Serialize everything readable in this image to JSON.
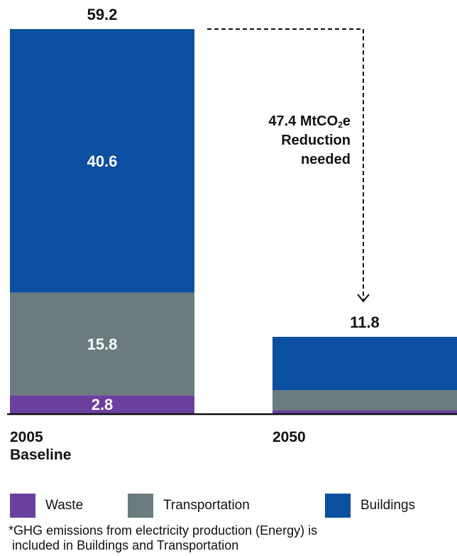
{
  "chart_data": {
    "type": "bar",
    "stacked": true,
    "categories": [
      "2005 Baseline",
      "2050"
    ],
    "category_lines": [
      [
        "2005",
        "Baseline"
      ],
      [
        "2050"
      ]
    ],
    "series": [
      {
        "name": "Waste",
        "color": "#6b3fa0",
        "values": [
          2.8,
          0.5
        ],
        "labels": [
          "2.8",
          ""
        ]
      },
      {
        "name": "Transportation",
        "color": "#6b7b7e",
        "values": [
          15.8,
          3.1
        ],
        "labels": [
          "15.8",
          ""
        ]
      },
      {
        "name": "Buildings",
        "color": "#0b4fa0",
        "values": [
          40.6,
          8.2
        ],
        "labels": [
          "40.6",
          ""
        ]
      }
    ],
    "totals": [
      59.2,
      11.8
    ],
    "total_labels": [
      "59.2",
      "11.8"
    ],
    "ylim": [
      0,
      59.2
    ],
    "grid": false,
    "legend_position": "bottom",
    "annotation": {
      "value_prefix": "47.4 MtCO",
      "subscript": "2",
      "value_suffix": "e",
      "line2": "Reduction",
      "line3": "needed"
    }
  },
  "footnote": {
    "line1": "*GHG emissions from electricity production (Energy) is",
    "line2": " included in Buildings and Transportation"
  }
}
